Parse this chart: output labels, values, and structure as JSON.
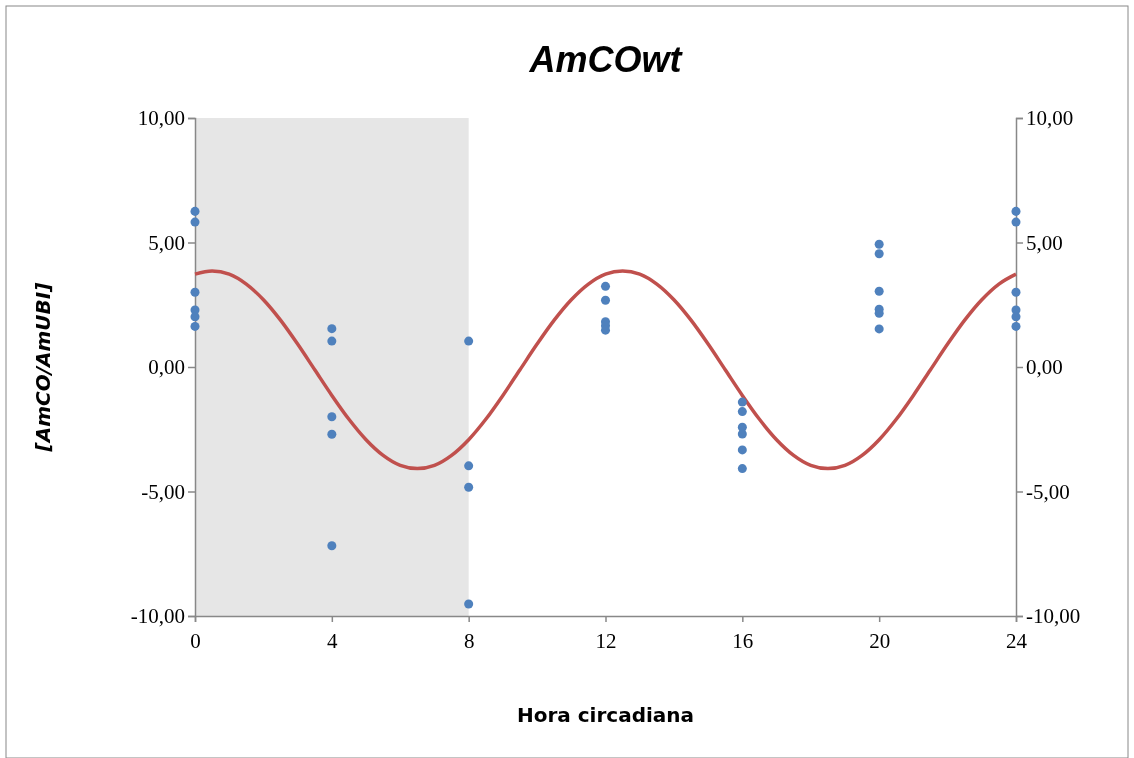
{
  "chart_data": {
    "type": "scatter",
    "title": "AmCOwt",
    "xlabel": "Hora circadiana",
    "ylabel": "[AmCO/AmUBI]",
    "xlim": [
      0,
      24
    ],
    "xticks": [
      0,
      4,
      8,
      12,
      16,
      20,
      24
    ],
    "ylim": [
      -10,
      10
    ],
    "yticks": [
      {
        "value": -10,
        "label": "-10,00"
      },
      {
        "value": -5,
        "label": "-5,00"
      },
      {
        "value": 0,
        "label": "0,00"
      },
      {
        "value": 5,
        "label": "5,00"
      },
      {
        "value": 10,
        "label": "10,00"
      }
    ],
    "y2lim": [
      -10,
      10
    ],
    "y2ticks": [
      {
        "value": -10,
        "label": "-10,00"
      },
      {
        "value": -5,
        "label": "-5,00"
      },
      {
        "value": 0,
        "label": "0,00"
      },
      {
        "value": 5,
        "label": "5,00"
      },
      {
        "value": 10,
        "label": "10,00"
      }
    ],
    "grid": false,
    "marker": "circle",
    "bands": [
      {
        "axis": "x",
        "from": 0,
        "to": 8,
        "color": "#e6e6e6"
      }
    ],
    "series": [
      {
        "type": "line",
        "marker": "none",
        "color": "#c0504d",
        "x": [
          0,
          0.5,
          1,
          1.5,
          2,
          2.5,
          3,
          3.5,
          4,
          4.5,
          5,
          5.5,
          6,
          6.5,
          7,
          7.5,
          8,
          8.5,
          9,
          9.5,
          10,
          10.5,
          11,
          11.5,
          12,
          12.5,
          13,
          13.5,
          14,
          14.5,
          15,
          15.5,
          16,
          16.5,
          17,
          17.5,
          18,
          18.5,
          19,
          19.5,
          20,
          20.5,
          21,
          21.5,
          22,
          22.5,
          23,
          23.5,
          24
        ],
        "values": [
          3.73,
          3.86,
          3.73,
          3.33,
          2.7,
          1.88,
          0.92,
          -0.11,
          -1.14,
          -2.1,
          -2.92,
          -3.55,
          -3.95,
          -4.08,
          -3.95,
          -3.55,
          -2.92,
          -2.1,
          -1.14,
          -0.11,
          0.92,
          1.88,
          2.7,
          3.33,
          3.73,
          3.86,
          3.73,
          3.33,
          2.7,
          1.88,
          0.92,
          -0.11,
          -1.14,
          -2.1,
          -2.92,
          -3.55,
          -3.95,
          -4.08,
          -3.95,
          -3.55,
          -2.92,
          -2.1,
          -1.14,
          -0.11,
          0.92,
          1.88,
          2.7,
          3.33,
          3.73
        ]
      },
      {
        "color": "#4f81bd",
        "x": [
          0,
          0,
          0,
          0,
          0,
          0,
          4,
          4,
          4,
          4,
          4,
          8,
          8,
          8,
          8,
          12,
          12,
          12,
          12,
          12,
          16,
          16,
          16,
          16,
          16,
          16,
          20,
          20,
          20,
          20,
          20,
          20,
          24,
          24,
          24,
          24,
          24,
          24
        ],
        "values": [
          6.25,
          5.82,
          3.0,
          2.29,
          2.02,
          1.63,
          1.54,
          1.04,
          -2.0,
          -2.7,
          -7.18,
          1.04,
          -3.97,
          -4.83,
          -9.52,
          3.24,
          2.68,
          1.82,
          1.66,
          1.48,
          -1.41,
          -1.79,
          -2.42,
          -2.69,
          -3.33,
          -4.08,
          4.93,
          4.55,
          3.04,
          2.32,
          2.16,
          1.53,
          6.25,
          5.82,
          3.0,
          2.29,
          2.02,
          1.63
        ]
      }
    ]
  }
}
